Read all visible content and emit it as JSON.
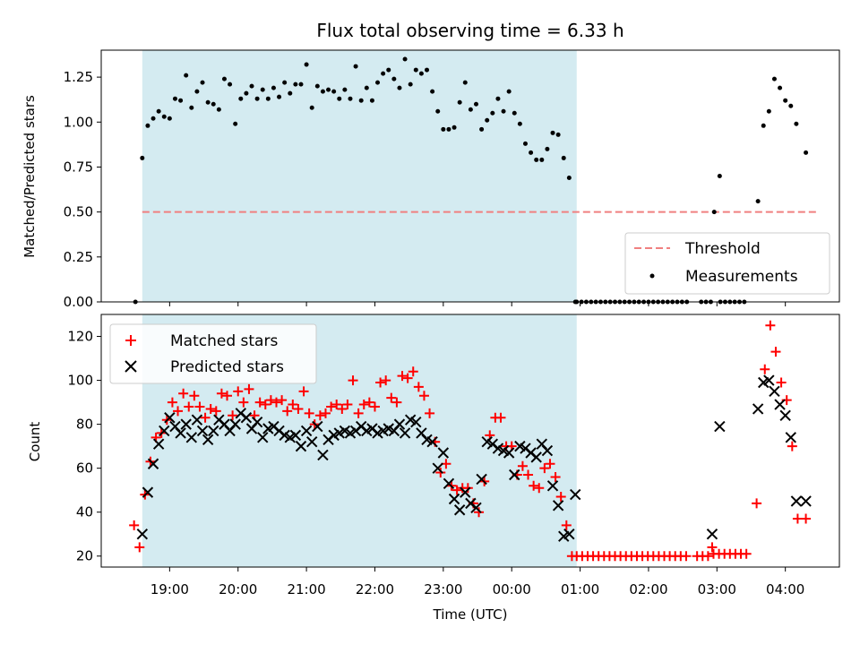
{
  "chart_data": [
    {
      "type": "scatter",
      "id": "ratio",
      "title": "Flux total observing time = 6.33 h",
      "xlabel": "",
      "ylabel": "Matched/Predicted stars",
      "xlim": [
        18.0,
        28.79
      ],
      "ylim": [
        0,
        1.4
      ],
      "y_ticks": [
        0.0,
        0.25,
        0.5,
        0.75,
        1.0,
        1.25
      ],
      "y_tick_labels": [
        "0.00",
        "0.25",
        "0.50",
        "0.75",
        "1.00",
        "1.25"
      ],
      "shaded_span": [
        18.6,
        24.95
      ],
      "shade_color": "#d4ebf1",
      "legend_position": "lower-right",
      "threshold": {
        "name": "Threshold",
        "value": 0.5,
        "x": [
          18.6,
          28.5
        ],
        "color": "#f08080"
      },
      "measurements": {
        "name": "Measurements",
        "color": "#000000",
        "x": [
          18.5,
          18.6,
          18.68,
          18.76,
          18.84,
          18.92,
          19.0,
          19.08,
          19.16,
          19.24,
          19.32,
          19.4,
          19.48,
          19.56,
          19.64,
          19.72,
          19.8,
          19.88,
          19.96,
          20.04,
          20.12,
          20.2,
          20.28,
          20.36,
          20.44,
          20.52,
          20.6,
          20.68,
          20.76,
          20.84,
          20.92,
          21.0,
          21.08,
          21.16,
          21.24,
          21.32,
          21.4,
          21.48,
          21.56,
          21.64,
          21.72,
          21.8,
          21.88,
          21.96,
          22.04,
          22.12,
          22.2,
          22.28,
          22.36,
          22.44,
          22.52,
          22.6,
          22.68,
          22.76,
          22.84,
          22.92,
          23.0,
          23.08,
          23.16,
          23.24,
          23.32,
          23.4,
          23.48,
          23.56,
          23.64,
          23.72,
          23.8,
          23.88,
          23.96,
          24.04,
          24.12,
          24.2,
          24.28,
          24.36,
          24.44,
          24.52,
          24.6,
          24.68,
          24.76,
          24.84,
          24.93,
          26.96,
          27.04,
          27.6,
          27.68,
          27.76,
          27.84,
          27.92,
          28.0,
          28.08,
          28.16,
          28.3
        ],
        "y": [
          0.0,
          0.8,
          0.98,
          1.02,
          1.06,
          1.03,
          1.02,
          1.13,
          1.12,
          1.26,
          1.08,
          1.17,
          1.22,
          1.11,
          1.1,
          1.07,
          1.24,
          1.21,
          0.99,
          1.13,
          1.16,
          1.2,
          1.13,
          1.18,
          1.13,
          1.19,
          1.14,
          1.22,
          1.16,
          1.21,
          1.21,
          1.32,
          1.08,
          1.2,
          1.17,
          1.18,
          1.17,
          1.13,
          1.18,
          1.13,
          1.31,
          1.12,
          1.19,
          1.12,
          1.22,
          1.27,
          1.29,
          1.24,
          1.19,
          1.35,
          1.21,
          1.29,
          1.27,
          1.29,
          1.17,
          1.06,
          0.96,
          0.96,
          0.97,
          1.11,
          1.22,
          1.07,
          1.1,
          0.96,
          1.01,
          1.05,
          1.13,
          1.06,
          1.17,
          1.05,
          0.99,
          0.88,
          0.83,
          0.79,
          0.79,
          0.85,
          0.94,
          0.93,
          0.8,
          0.69,
          0.0,
          0.5,
          0.7,
          0.56,
          0.98,
          1.06,
          1.24,
          1.19,
          1.12,
          1.09,
          0.99,
          0.83
        ],
        "zero_x_range": [
          24.95,
          27.45
        ],
        "zero_x_step": 0.07,
        "zero_gaps": [
          [
            26.6,
            26.7
          ],
          [
            26.92,
            27.0
          ]
        ]
      }
    },
    {
      "type": "scatter",
      "id": "count",
      "title": "",
      "xlabel": "Time (UTC)",
      "ylabel": "Count",
      "xlim": [
        18.0,
        28.79
      ],
      "ylim": [
        15,
        130
      ],
      "y_ticks": [
        20,
        40,
        60,
        80,
        100,
        120
      ],
      "y_tick_labels": [
        "20",
        "40",
        "60",
        "80",
        "100",
        "120"
      ],
      "x_ticks": [
        19,
        20,
        21,
        22,
        23,
        24,
        25,
        26,
        27,
        28
      ],
      "x_tick_labels": [
        "19:00",
        "20:00",
        "21:00",
        "22:00",
        "23:00",
        "00:00",
        "01:00",
        "02:00",
        "03:00",
        "04:00"
      ],
      "shaded_span": [
        18.6,
        24.95
      ],
      "legend_position": "upper-left",
      "series": [
        {
          "name": "Matched stars",
          "marker": "plus",
          "color": "#ff0000",
          "x": [
            18.48,
            18.56,
            18.64,
            18.72,
            18.8,
            18.88,
            18.96,
            19.04,
            19.12,
            19.2,
            19.28,
            19.36,
            19.44,
            19.52,
            19.6,
            19.68,
            19.76,
            19.84,
            19.92,
            20.0,
            20.08,
            20.16,
            20.24,
            20.32,
            20.4,
            20.48,
            20.56,
            20.64,
            20.72,
            20.8,
            20.88,
            20.96,
            21.04,
            21.12,
            21.2,
            21.28,
            21.36,
            21.44,
            21.52,
            21.6,
            21.68,
            21.76,
            21.84,
            21.92,
            22.0,
            22.08,
            22.16,
            22.24,
            22.32,
            22.4,
            22.48,
            22.56,
            22.64,
            22.72,
            22.8,
            22.88,
            22.96,
            23.04,
            23.12,
            23.2,
            23.28,
            23.36,
            23.44,
            23.52,
            23.6,
            23.68,
            23.76,
            23.84,
            23.92,
            24.0,
            24.08,
            24.16,
            24.24,
            24.32,
            24.4,
            24.48,
            24.56,
            24.64,
            24.72,
            24.8,
            24.88,
            26.93,
            27.58
          ],
          "y": [
            34,
            24,
            48,
            63,
            74,
            76,
            82,
            90,
            86,
            94,
            88,
            93,
            88,
            83,
            87,
            86,
            94,
            93,
            84,
            95,
            90,
            96,
            84,
            90,
            89,
            91,
            90,
            91,
            86,
            89,
            87,
            95,
            85,
            80,
            84,
            85,
            88,
            89,
            87,
            89,
            100,
            85,
            89,
            90,
            88,
            99,
            100,
            92,
            90,
            102,
            101,
            104,
            97,
            93,
            85,
            72,
            58,
            62,
            52,
            50,
            51,
            51,
            44,
            40,
            54,
            75,
            83,
            83,
            70,
            70,
            57,
            61,
            57,
            52,
            51,
            60,
            62,
            56,
            47,
            34,
            20,
            24,
            44
          ],
          "extra_x": [
            27.7,
            27.78,
            27.86,
            27.94,
            28.02,
            28.1,
            28.18,
            28.3
          ],
          "extra_y": [
            105,
            125,
            113,
            99,
            91,
            70,
            37,
            37
          ],
          "floor_x_range": [
            24.95,
            27.4
          ],
          "floor_x_step": 0.08,
          "floor_value": 20,
          "floor_gaps": [
            [
              26.58,
              26.7
            ]
          ],
          "plateau": {
            "x_range": [
              26.95,
              27.45
            ],
            "x_step": 0.08,
            "value": 21
          }
        },
        {
          "name": "Predicted stars",
          "marker": "x",
          "color": "#000000",
          "x": [
            18.6,
            18.68,
            18.76,
            18.84,
            18.92,
            19.0,
            19.08,
            19.16,
            19.24,
            19.32,
            19.4,
            19.48,
            19.56,
            19.64,
            19.72,
            19.8,
            19.88,
            19.96,
            20.04,
            20.12,
            20.2,
            20.28,
            20.36,
            20.44,
            20.52,
            20.6,
            20.68,
            20.76,
            20.84,
            20.92,
            21.0,
            21.08,
            21.16,
            21.24,
            21.32,
            21.4,
            21.48,
            21.56,
            21.64,
            21.72,
            21.8,
            21.88,
            21.96,
            22.04,
            22.12,
            22.2,
            22.28,
            22.36,
            22.44,
            22.52,
            22.6,
            22.68,
            22.76,
            22.84,
            22.92,
            23.0,
            23.08,
            23.16,
            23.24,
            23.32,
            23.4,
            23.48,
            23.56,
            23.64,
            23.72,
            23.8,
            23.88,
            23.96,
            24.04,
            24.12,
            24.2,
            24.28,
            24.36,
            24.44,
            24.52,
            24.6,
            24.68,
            24.76,
            24.84,
            24.93,
            26.93,
            27.04,
            27.6,
            27.68,
            27.76,
            27.84,
            27.92,
            28.0,
            28.08,
            28.16,
            28.3
          ],
          "y": [
            30,
            49,
            62,
            71,
            77,
            83,
            79,
            76,
            80,
            74,
            82,
            77,
            73,
            77,
            82,
            80,
            77,
            80,
            85,
            83,
            78,
            81,
            74,
            78,
            79,
            77,
            75,
            74,
            75,
            70,
            77,
            72,
            79,
            66,
            73,
            75,
            76,
            77,
            76,
            77,
            79,
            77,
            78,
            76,
            77,
            78,
            77,
            80,
            76,
            82,
            81,
            76,
            73,
            72,
            60,
            67,
            53,
            46,
            41,
            49,
            44,
            42,
            55,
            72,
            71,
            69,
            68,
            67,
            57,
            70,
            69,
            67,
            65,
            71,
            68,
            52,
            43,
            29,
            30,
            48,
            30,
            79,
            87,
            99,
            100,
            95,
            89,
            84,
            74,
            45,
            45
          ]
        }
      ]
    }
  ]
}
